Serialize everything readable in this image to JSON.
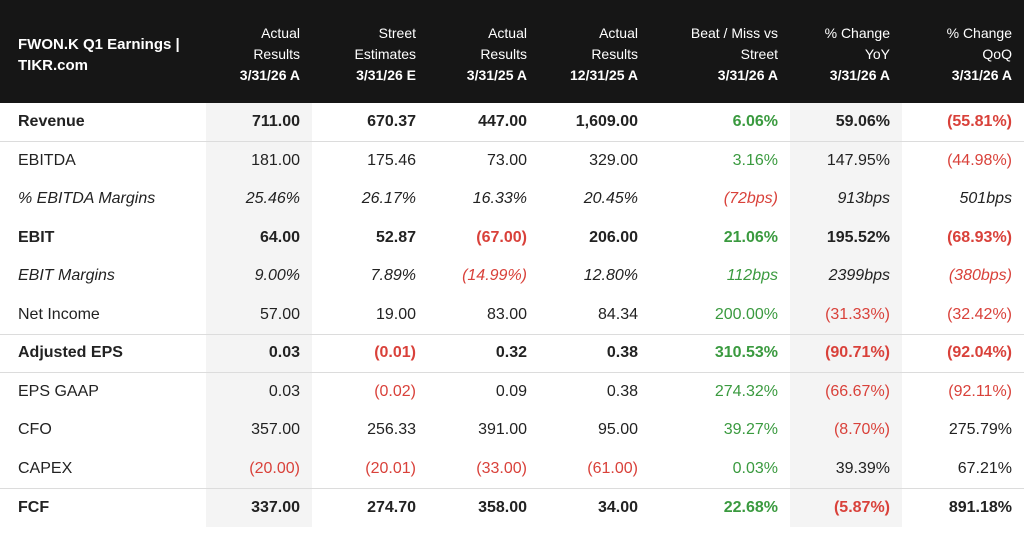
{
  "table": {
    "header": {
      "title_line1": "FWON.K Q1 Earnings |",
      "title_line2": "TIKR.com",
      "columns": [
        {
          "l1": "Actual",
          "l2": "Results",
          "date": "3/31/26 A"
        },
        {
          "l1": "Street",
          "l2": "Estimates",
          "date": "3/31/26 E"
        },
        {
          "l1": "Actual",
          "l2": "Results",
          "date": "3/31/25 A"
        },
        {
          "l1": "Actual",
          "l2": "Results",
          "date": "12/31/25 A"
        },
        {
          "l1": "Beat / Miss vs",
          "l2": "Street",
          "date": "3/31/26 A"
        },
        {
          "l1": "% Change",
          "l2": "YoY",
          "date": "3/31/26 A"
        },
        {
          "l1": "% Change",
          "l2": "QoQ",
          "date": "3/31/26 A"
        }
      ]
    },
    "rows": [
      {
        "label": "Revenue",
        "style": "bold",
        "sep": false,
        "cells": [
          "711.00",
          "670.37",
          "447.00",
          "1,609.00",
          "6.06%",
          "59.06%",
          "(55.81%)"
        ],
        "tones": [
          "",
          "",
          "",
          "",
          "pos",
          "",
          "neg"
        ]
      },
      {
        "label": "EBITDA",
        "style": "",
        "sep": true,
        "cells": [
          "181.00",
          "175.46",
          "73.00",
          "329.00",
          "3.16%",
          "147.95%",
          "(44.98%)"
        ],
        "tones": [
          "",
          "",
          "",
          "",
          "pos",
          "",
          "neg"
        ]
      },
      {
        "label": "% EBITDA Margins",
        "style": "italic",
        "sep": false,
        "cells": [
          "25.46%",
          "26.17%",
          "16.33%",
          "20.45%",
          "(72bps)",
          "913bps",
          "501bps"
        ],
        "tones": [
          "",
          "",
          "",
          "",
          "neg",
          "",
          ""
        ]
      },
      {
        "label": "EBIT",
        "style": "bold",
        "sep": false,
        "cells": [
          "64.00",
          "52.87",
          "(67.00)",
          "206.00",
          "21.06%",
          "195.52%",
          "(68.93%)"
        ],
        "tones": [
          "",
          "",
          "neg",
          "",
          "pos",
          "",
          "neg"
        ]
      },
      {
        "label": "EBIT Margins",
        "style": "italic",
        "sep": false,
        "cells": [
          "9.00%",
          "7.89%",
          "(14.99%)",
          "12.80%",
          "112bps",
          "2399bps",
          "(380bps)"
        ],
        "tones": [
          "",
          "",
          "neg",
          "",
          "pos",
          "",
          "neg"
        ]
      },
      {
        "label": "Net Income",
        "style": "",
        "sep": false,
        "cells": [
          "57.00",
          "19.00",
          "83.00",
          "84.34",
          "200.00%",
          "(31.33%)",
          "(32.42%)"
        ],
        "tones": [
          "",
          "",
          "",
          "",
          "pos",
          "neg",
          "neg"
        ]
      },
      {
        "label": "Adjusted EPS",
        "style": "bold",
        "sep": true,
        "cells": [
          "0.03",
          "(0.01)",
          "0.32",
          "0.38",
          "310.53%",
          "(90.71%)",
          "(92.04%)"
        ],
        "tones": [
          "",
          "neg",
          "",
          "",
          "pos",
          "neg",
          "neg"
        ]
      },
      {
        "label": "EPS GAAP",
        "style": "",
        "sep": true,
        "cells": [
          "0.03",
          "(0.02)",
          "0.09",
          "0.38",
          "274.32%",
          "(66.67%)",
          "(92.11%)"
        ],
        "tones": [
          "",
          "neg",
          "",
          "",
          "pos",
          "neg",
          "neg"
        ]
      },
      {
        "label": "CFO",
        "style": "",
        "sep": false,
        "cells": [
          "357.00",
          "256.33",
          "391.00",
          "95.00",
          "39.27%",
          "(8.70%)",
          "275.79%"
        ],
        "tones": [
          "",
          "",
          "",
          "",
          "pos",
          "neg",
          ""
        ]
      },
      {
        "label": "CAPEX",
        "style": "",
        "sep": false,
        "cells": [
          "(20.00)",
          "(20.01)",
          "(33.00)",
          "(61.00)",
          "0.03%",
          "39.39%",
          "67.21%"
        ],
        "tones": [
          "neg",
          "neg",
          "neg",
          "neg",
          "pos",
          "",
          ""
        ]
      },
      {
        "label": "FCF",
        "style": "bold",
        "sep": true,
        "cells": [
          "337.00",
          "274.70",
          "358.00",
          "34.00",
          "22.68%",
          "(5.87%)",
          "891.18%"
        ],
        "tones": [
          "",
          "",
          "",
          "",
          "pos",
          "neg",
          ""
        ]
      }
    ]
  }
}
